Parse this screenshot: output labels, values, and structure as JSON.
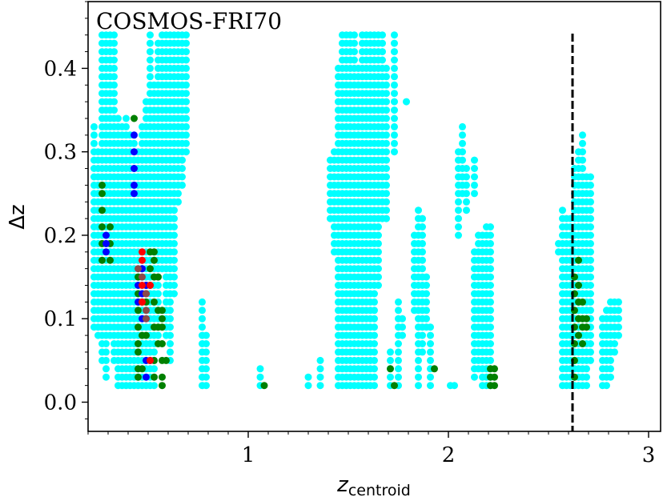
{
  "chart_data": {
    "type": "scatter",
    "title": "COSMOS-FRI70",
    "xlabel": {
      "main": "z",
      "sub": "centroid"
    },
    "ylabel": "Δz",
    "xlim": [
      0.2,
      3.06
    ],
    "ylim": [
      -0.035,
      0.48
    ],
    "xticks": [
      1,
      2,
      3
    ],
    "xtick_labels": [
      "1",
      "2",
      "3"
    ],
    "yticks": [
      0.0,
      0.1,
      0.2,
      0.3,
      0.4
    ],
    "ytick_labels": [
      "0.0",
      "0.1",
      "0.2",
      "0.3",
      "0.4"
    ],
    "grid": false,
    "vline": {
      "x": 2.62,
      "color": "#000000",
      "style": "dashed"
    },
    "colors": {
      "cyan": "#00ffff",
      "green": "#008000",
      "red": "#ff0000",
      "blue": "#0000ff",
      "brown": "#8b4a4a"
    },
    "series": [
      {
        "color": "cyan",
        "columns": [
          [
            0.23,
            0.09,
            0.33
          ],
          [
            0.25,
            0.08,
            0.3
          ],
          [
            0.27,
            0.05,
            0.44
          ],
          [
            0.29,
            0.03,
            0.44
          ],
          [
            0.31,
            0.08,
            0.44
          ],
          [
            0.33,
            0.05,
            0.44
          ],
          [
            0.35,
            0.02,
            0.34
          ],
          [
            0.37,
            0.02,
            0.33
          ],
          [
            0.39,
            0.02,
            0.34
          ],
          [
            0.41,
            0.02,
            0.32
          ],
          [
            0.43,
            0.02,
            0.31
          ],
          [
            0.45,
            0.02,
            0.3
          ],
          [
            0.47,
            0.02,
            0.33
          ],
          [
            0.49,
            0.02,
            0.36
          ],
          [
            0.51,
            0.02,
            0.44
          ],
          [
            0.53,
            0.02,
            0.38
          ],
          [
            0.55,
            0.08,
            0.43
          ],
          [
            0.57,
            0.16,
            0.44
          ],
          [
            0.59,
            0.08,
            0.44
          ],
          [
            0.61,
            0.05,
            0.44
          ],
          [
            0.63,
            0.13,
            0.44
          ],
          [
            0.65,
            0.24,
            0.44
          ],
          [
            0.67,
            0.26,
            0.44
          ],
          [
            0.69,
            0.3,
            0.44
          ],
          [
            0.77,
            0.02,
            0.12
          ],
          [
            0.79,
            0.02,
            0.08
          ],
          [
            1.06,
            0.02,
            0.04
          ],
          [
            1.3,
            0.02,
            0.03
          ],
          [
            1.36,
            0.02,
            0.05
          ],
          [
            1.41,
            0.22,
            0.29
          ],
          [
            1.43,
            0.18,
            0.3
          ],
          [
            1.45,
            0.02,
            0.4
          ],
          [
            1.47,
            0.02,
            0.44
          ],
          [
            1.49,
            0.02,
            0.44
          ],
          [
            1.51,
            0.02,
            0.44
          ],
          [
            1.53,
            0.02,
            0.44
          ],
          [
            1.55,
            0.02,
            0.4
          ],
          [
            1.57,
            0.02,
            0.44
          ],
          [
            1.59,
            0.02,
            0.44
          ],
          [
            1.61,
            0.02,
            0.44
          ],
          [
            1.63,
            0.02,
            0.44
          ],
          [
            1.65,
            0.14,
            0.44
          ],
          [
            1.67,
            0.22,
            0.44
          ],
          [
            1.69,
            0.22,
            0.4
          ],
          [
            1.71,
            0.02,
            0.06
          ],
          [
            1.73,
            0.3,
            0.44
          ],
          [
            1.75,
            0.02,
            0.12
          ],
          [
            1.77,
            0.08,
            0.1
          ],
          [
            1.79,
            0.36,
            0.36
          ],
          [
            1.83,
            0.11,
            0.2
          ],
          [
            1.85,
            0.02,
            0.23
          ],
          [
            1.87,
            0.06,
            0.22
          ],
          [
            1.89,
            0.09,
            0.15
          ],
          [
            1.91,
            0.02,
            0.09
          ],
          [
            2.01,
            0.02,
            0.02
          ],
          [
            2.03,
            0.02,
            0.02
          ],
          [
            2.05,
            0.2,
            0.3
          ],
          [
            2.07,
            0.25,
            0.33
          ],
          [
            2.09,
            0.23,
            0.28
          ],
          [
            2.13,
            0.25,
            0.29
          ],
          [
            2.13,
            0.03,
            0.18
          ],
          [
            2.15,
            0.04,
            0.2
          ],
          [
            2.17,
            0.02,
            0.2
          ],
          [
            2.19,
            0.02,
            0.21
          ],
          [
            2.21,
            0.02,
            0.21
          ],
          [
            2.55,
            0.18,
            0.19
          ],
          [
            2.57,
            0.02,
            0.23
          ],
          [
            2.59,
            0.02,
            0.22
          ],
          [
            2.61,
            0.02,
            0.22
          ],
          [
            2.63,
            0.02,
            0.28
          ],
          [
            2.65,
            0.02,
            0.3
          ],
          [
            2.67,
            0.02,
            0.32
          ],
          [
            2.69,
            0.02,
            0.27
          ],
          [
            2.71,
            0.05,
            0.27
          ],
          [
            2.77,
            0.02,
            0.1
          ],
          [
            2.79,
            0.02,
            0.11
          ],
          [
            2.81,
            0.03,
            0.12
          ],
          [
            2.83,
            0.06,
            0.12
          ],
          [
            2.85,
            0.08,
            0.12
          ]
        ]
      },
      {
        "color": "green",
        "points": [
          [
            0.27,
            0.17
          ],
          [
            0.27,
            0.19
          ],
          [
            0.27,
            0.21
          ],
          [
            0.27,
            0.23
          ],
          [
            0.27,
            0.25
          ],
          [
            0.27,
            0.26
          ],
          [
            0.31,
            0.17
          ],
          [
            0.31,
            0.19
          ],
          [
            0.31,
            0.21
          ],
          [
            0.43,
            0.34
          ],
          [
            0.45,
            0.03
          ],
          [
            0.45,
            0.04
          ],
          [
            0.45,
            0.06
          ],
          [
            0.45,
            0.07
          ],
          [
            0.45,
            0.09
          ],
          [
            0.45,
            0.11
          ],
          [
            0.45,
            0.13
          ],
          [
            0.45,
            0.15
          ],
          [
            0.47,
            0.04
          ],
          [
            0.47,
            0.08
          ],
          [
            0.47,
            0.12
          ],
          [
            0.47,
            0.16
          ],
          [
            0.49,
            0.08
          ],
          [
            0.49,
            0.12
          ],
          [
            0.49,
            0.14
          ],
          [
            0.51,
            0.14
          ],
          [
            0.51,
            0.16
          ],
          [
            0.51,
            0.18
          ],
          [
            0.53,
            0.03
          ],
          [
            0.53,
            0.05
          ],
          [
            0.53,
            0.09
          ],
          [
            0.53,
            0.12
          ],
          [
            0.53,
            0.15
          ],
          [
            0.53,
            0.17
          ],
          [
            0.53,
            0.18
          ],
          [
            0.55,
            0.07
          ],
          [
            0.55,
            0.09
          ],
          [
            0.55,
            0.11
          ],
          [
            0.55,
            0.15
          ],
          [
            0.57,
            0.02
          ],
          [
            0.57,
            0.03
          ],
          [
            0.57,
            0.05
          ],
          [
            0.57,
            0.07
          ],
          [
            0.57,
            0.09
          ],
          [
            0.57,
            0.1
          ],
          [
            0.57,
            0.11
          ],
          [
            0.59,
            0.05
          ],
          [
            1.08,
            0.02
          ],
          [
            1.71,
            0.04
          ],
          [
            1.73,
            0.02
          ],
          [
            1.93,
            0.04
          ],
          [
            2.21,
            0.02
          ],
          [
            2.21,
            0.03
          ],
          [
            2.21,
            0.04
          ],
          [
            2.23,
            0.02
          ],
          [
            2.23,
            0.03
          ],
          [
            2.23,
            0.04
          ],
          [
            2.63,
            0.03
          ],
          [
            2.63,
            0.05
          ],
          [
            2.63,
            0.07
          ],
          [
            2.63,
            0.09
          ],
          [
            2.63,
            0.11
          ],
          [
            2.63,
            0.13
          ],
          [
            2.63,
            0.15
          ],
          [
            2.65,
            0.08
          ],
          [
            2.65,
            0.1
          ],
          [
            2.65,
            0.12
          ],
          [
            2.65,
            0.14
          ],
          [
            2.65,
            0.17
          ],
          [
            2.67,
            0.07
          ],
          [
            2.67,
            0.09
          ],
          [
            2.67,
            0.1
          ],
          [
            2.67,
            0.12
          ],
          [
            2.69,
            0.09
          ],
          [
            2.69,
            0.1
          ]
        ]
      },
      {
        "color": "blue",
        "points": [
          [
            0.29,
            0.2
          ],
          [
            0.29,
            0.19
          ],
          [
            0.29,
            0.18
          ],
          [
            0.43,
            0.25
          ],
          [
            0.43,
            0.26
          ],
          [
            0.43,
            0.28
          ],
          [
            0.43,
            0.3
          ],
          [
            0.43,
            0.32
          ],
          [
            0.45,
            0.12
          ],
          [
            0.45,
            0.14
          ],
          [
            0.47,
            0.1
          ],
          [
            0.47,
            0.13
          ],
          [
            0.47,
            0.16
          ],
          [
            0.49,
            0.03
          ],
          [
            0.49,
            0.05
          ],
          [
            0.49,
            0.1
          ],
          [
            0.49,
            0.14
          ],
          [
            0.51,
            0.05
          ]
        ]
      },
      {
        "color": "red",
        "points": [
          [
            0.47,
            0.12
          ],
          [
            0.47,
            0.14
          ],
          [
            0.47,
            0.17
          ],
          [
            0.47,
            0.18
          ],
          [
            0.49,
            0.13
          ],
          [
            0.51,
            0.05
          ],
          [
            0.51,
            0.14
          ]
        ]
      },
      {
        "color": "brown",
        "points": [
          [
            0.45,
            0.16
          ],
          [
            0.47,
            0.15
          ],
          [
            0.49,
            0.1
          ],
          [
            0.49,
            0.11
          ],
          [
            0.49,
            0.13
          ]
        ]
      }
    ]
  }
}
